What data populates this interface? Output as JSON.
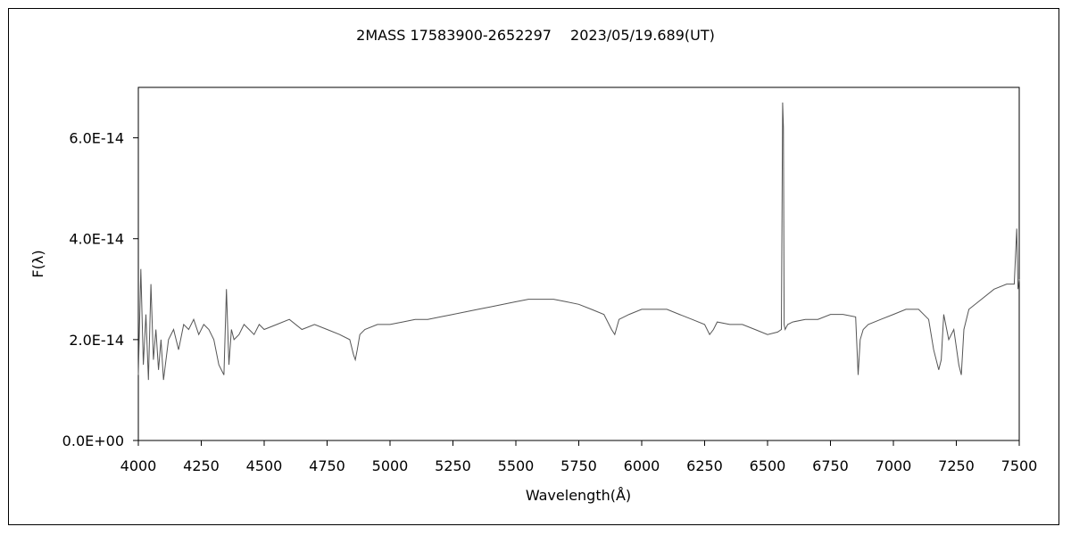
{
  "chart_data": {
    "type": "line",
    "title": "2MASS 17583900-2652297　 2023/05/19.689(UT)",
    "xlabel": "Wavelength(Å)",
    "ylabel": "F(λ)",
    "xlim": [
      4000,
      7500
    ],
    "ylim": [
      0,
      7e-14
    ],
    "x_ticks": [
      4000,
      4250,
      4500,
      4750,
      5000,
      5250,
      5500,
      5750,
      6000,
      6250,
      6500,
      6750,
      7000,
      7250,
      7500
    ],
    "x_tick_labels": [
      "4000",
      "4250",
      "4500",
      "4750",
      "5000",
      "5250",
      "5500",
      "5750",
      "6000",
      "6250",
      "6500",
      "6750",
      "7000",
      "7250",
      "7500"
    ],
    "y_ticks": [
      0,
      2e-14,
      4e-14,
      6e-14
    ],
    "y_tick_labels": [
      "0.0E+00",
      "2.0E-14",
      "4.0E-14",
      "6.0E-14"
    ],
    "grid": false,
    "legend": "none",
    "line_color": "#555555",
    "series": [
      {
        "x": [
          4000,
          4010,
          4020,
          4030,
          4040,
          4050,
          4060,
          4070,
          4080,
          4090,
          4100,
          4120,
          4140,
          4160,
          4180,
          4200,
          4220,
          4240,
          4260,
          4280,
          4300,
          4320,
          4340,
          4350,
          4360,
          4370,
          4380,
          4400,
          4420,
          4440,
          4460,
          4480,
          4500,
          4550,
          4600,
          4650,
          4700,
          4750,
          4800,
          4840,
          4855,
          4862,
          4870,
          4880,
          4900,
          4950,
          5000,
          5050,
          5100,
          5150,
          5200,
          5250,
          5300,
          5350,
          5400,
          5450,
          5500,
          5550,
          5600,
          5650,
          5700,
          5750,
          5800,
          5850,
          5880,
          5893,
          5910,
          5950,
          6000,
          6050,
          6100,
          6150,
          6200,
          6250,
          6270,
          6285,
          6300,
          6350,
          6400,
          6450,
          6500,
          6540,
          6555,
          6560,
          6563,
          6566,
          6570,
          6580,
          6600,
          6650,
          6700,
          6750,
          6800,
          6850,
          6860,
          6868,
          6880,
          6900,
          6950,
          7000,
          7050,
          7100,
          7140,
          7160,
          7180,
          7190,
          7200,
          7220,
          7240,
          7260,
          7270,
          7280,
          7300,
          7350,
          7400,
          7450,
          7480,
          7490,
          7495,
          7500
        ],
        "y": [
          1.3e-14,
          3.4e-14,
          1.5e-14,
          2.5e-14,
          1.2e-14,
          3.1e-14,
          1.6e-14,
          2.2e-14,
          1.4e-14,
          2e-14,
          1.2e-14,
          2e-14,
          2.2e-14,
          1.8e-14,
          2.3e-14,
          2.2e-14,
          2.4e-14,
          2.1e-14,
          2.3e-14,
          2.2e-14,
          2e-14,
          1.5e-14,
          1.3e-14,
          3e-14,
          1.5e-14,
          2.2e-14,
          2e-14,
          2.1e-14,
          2.3e-14,
          2.2e-14,
          2.1e-14,
          2.3e-14,
          2.2e-14,
          2.3e-14,
          2.4e-14,
          2.2e-14,
          2.3e-14,
          2.2e-14,
          2.1e-14,
          2e-14,
          1.7e-14,
          1.6e-14,
          1.8e-14,
          2.1e-14,
          2.2e-14,
          2.3e-14,
          2.3e-14,
          2.35e-14,
          2.4e-14,
          2.4e-14,
          2.45e-14,
          2.5e-14,
          2.55e-14,
          2.6e-14,
          2.65e-14,
          2.7e-14,
          2.75e-14,
          2.8e-14,
          2.8e-14,
          2.8e-14,
          2.75e-14,
          2.7e-14,
          2.6e-14,
          2.5e-14,
          2.2e-14,
          2.1e-14,
          2.4e-14,
          2.5e-14,
          2.6e-14,
          2.6e-14,
          2.6e-14,
          2.5e-14,
          2.4e-14,
          2.3e-14,
          2.1e-14,
          2.2e-14,
          2.35e-14,
          2.3e-14,
          2.3e-14,
          2.2e-14,
          2.1e-14,
          2.15e-14,
          2.2e-14,
          6.7e-14,
          6.2e-14,
          2.3e-14,
          2.2e-14,
          2.3e-14,
          2.35e-14,
          2.4e-14,
          2.4e-14,
          2.5e-14,
          2.5e-14,
          2.45e-14,
          1.3e-14,
          2e-14,
          2.2e-14,
          2.3e-14,
          2.4e-14,
          2.5e-14,
          2.6e-14,
          2.6e-14,
          2.4e-14,
          1.8e-14,
          1.4e-14,
          1.6e-14,
          2.5e-14,
          2e-14,
          2.2e-14,
          1.5e-14,
          1.3e-14,
          2.2e-14,
          2.6e-14,
          2.8e-14,
          3e-14,
          3.1e-14,
          3.1e-14,
          4.2e-14,
          3e-14,
          3.2e-14
        ]
      }
    ]
  }
}
